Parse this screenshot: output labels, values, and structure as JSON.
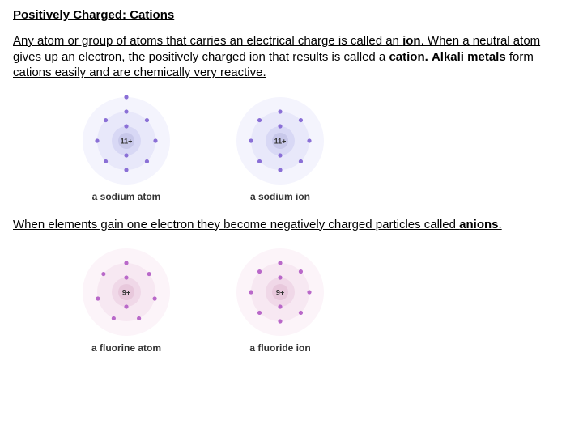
{
  "title": "Positively Charged: Cations",
  "para1_parts": {
    "p1": "Any atom or group of atoms that carries an electrical charge is called an ",
    "ion": "ion",
    "p2": ". When a neutral atom gives up an electron, the positively charged ion that results is called a ",
    "cation": "cation.",
    "p3": "  ",
    "alkali": "Alkali metals",
    "p4": " form cations easily and are chemically very reactive."
  },
  "para2_parts": {
    "p1": "When elements gain one electron they become negatively charged particles called ",
    "anions": "anions",
    "p2": "."
  },
  "sodium": {
    "nucleus_label": "11+",
    "shell_colors": {
      "inner": "#d8d8f5",
      "middle": "#e8e8fa",
      "outer": "#f4f4fd"
    },
    "electron_color": "#8a6fd6",
    "nucleus_color": "#c8c8ea",
    "atom": {
      "caption": "a sodium atom",
      "shells": [
        {
          "r": 18,
          "electrons": 2
        },
        {
          "r": 36,
          "electrons": 8
        },
        {
          "r": 54,
          "electrons": 1
        }
      ]
    },
    "ion": {
      "caption": "a sodium ion",
      "shells": [
        {
          "r": 18,
          "electrons": 2
        },
        {
          "r": 36,
          "electrons": 8
        }
      ],
      "outer_empty_r": 54
    },
    "svg_size": 120,
    "electron_r": 2.6
  },
  "fluorine": {
    "nucleus_label": "9+",
    "shell_colors": {
      "inner": "#f0d8e8",
      "middle": "#f7e8f2",
      "outer": "#fcf4f9"
    },
    "electron_color": "#b968c9",
    "nucleus_color": "#e8c8dc",
    "atom": {
      "caption": "a fluorine atom",
      "shells": [
        {
          "r": 18,
          "electrons": 2
        },
        {
          "r": 36,
          "electrons": 7
        }
      ],
      "outer_empty_r": 54
    },
    "ion": {
      "caption": "a fluoride ion",
      "shells": [
        {
          "r": 18,
          "electrons": 2
        },
        {
          "r": 36,
          "electrons": 8
        }
      ],
      "outer_empty_r": 54
    },
    "svg_size": 120,
    "electron_r": 2.6
  }
}
